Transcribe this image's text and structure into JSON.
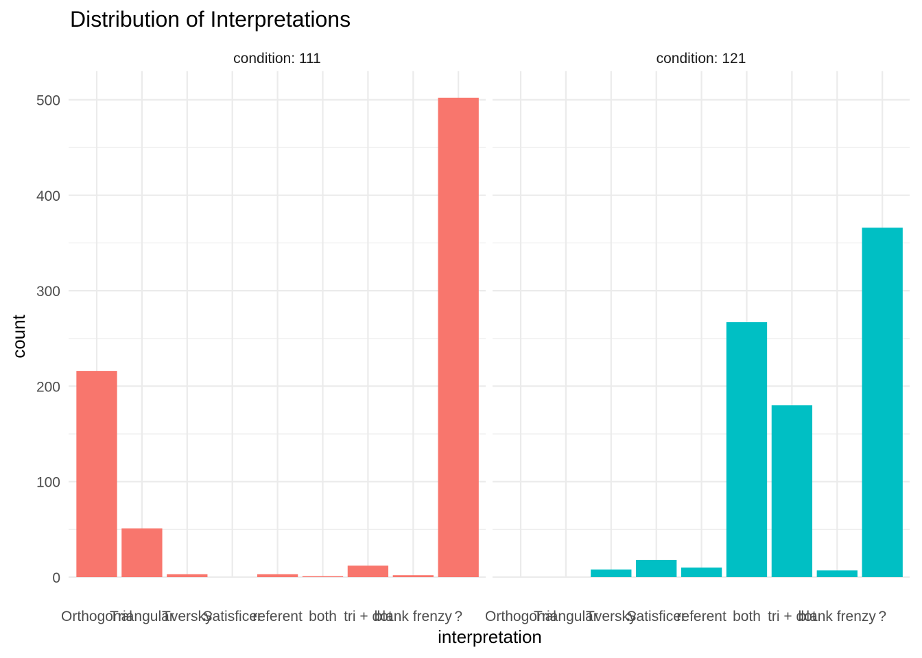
{
  "chart_data": {
    "type": "bar",
    "title": "Distribution of Interpretations",
    "xlabel": "interpretation",
    "ylabel": "count",
    "ylim": [
      0,
      530
    ],
    "y_ticks": [
      0,
      100,
      200,
      300,
      400,
      500
    ],
    "y_tick_labels": [
      "0",
      "100",
      "200",
      "300",
      "400",
      "500"
    ],
    "categories": [
      "Orthogonal",
      "Triangular",
      "Tversky",
      "Satisficer",
      "referent",
      "both",
      "tri + dot",
      "blank frenzy",
      "?"
    ],
    "grid": true,
    "legend": "none",
    "facets": [
      {
        "label": "condition: 111",
        "color": "#F8766D",
        "values": [
          216,
          51,
          3,
          0,
          3,
          1,
          12,
          2,
          502
        ]
      },
      {
        "label": "condition: 121",
        "color": "#00BFC4",
        "values": [
          0,
          0,
          8,
          18,
          10,
          267,
          180,
          7,
          366
        ]
      }
    ]
  }
}
